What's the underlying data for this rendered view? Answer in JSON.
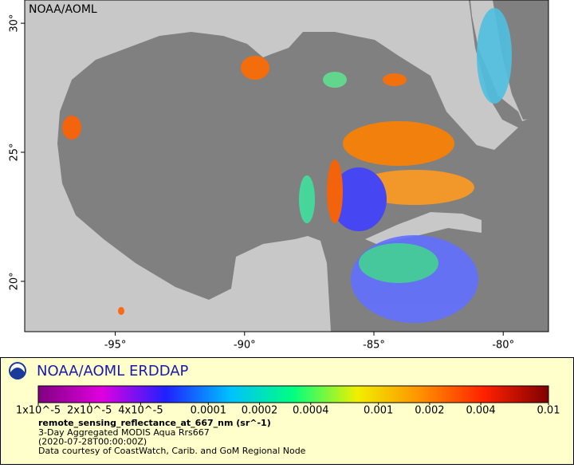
{
  "map": {
    "attribution": "NOAA/AOML",
    "xlim": [
      -98.5,
      -78.25
    ],
    "ylim": [
      18.05,
      30.9
    ],
    "xticks": [
      {
        "value": -95,
        "label": "-95°"
      },
      {
        "value": -90,
        "label": "-90°"
      },
      {
        "value": -85,
        "label": "-85°"
      },
      {
        "value": -80,
        "label": "-80°"
      }
    ],
    "yticks": [
      {
        "value": 20,
        "label": "20°"
      },
      {
        "value": 25,
        "label": "25°"
      },
      {
        "value": 30,
        "label": "30°"
      }
    ]
  },
  "legend": {
    "title": "NOAA/AOML ERDDAP",
    "colorbar": {
      "scale": "log",
      "lim": [
        1e-05,
        0.01
      ],
      "colors": [
        "#800080",
        "#e000e0",
        "#2020ff",
        "#00c0ff",
        "#00ff80",
        "#f0f000",
        "#ff9000",
        "#ff2000",
        "#800000"
      ],
      "ticks": [
        {
          "value": 1e-05,
          "label": "1x10^-5"
        },
        {
          "value": 2e-05,
          "label": "2x10^-5"
        },
        {
          "value": 4e-05,
          "label": "4x10^-5"
        },
        0.0001,
        0.0002,
        0.0004,
        0.001,
        0.002,
        0.004,
        0.01
      ]
    },
    "variable": "remote_sensing_reflectance_at_667_nm (sr^-1)",
    "lines": [
      "3-Day Aggregated MODIS Aqua Rrs667",
      "(2020-07-28T00:00:00Z)",
      "Data courtesy of CoastWatch, Carib. and GoM Regional Node"
    ]
  }
}
